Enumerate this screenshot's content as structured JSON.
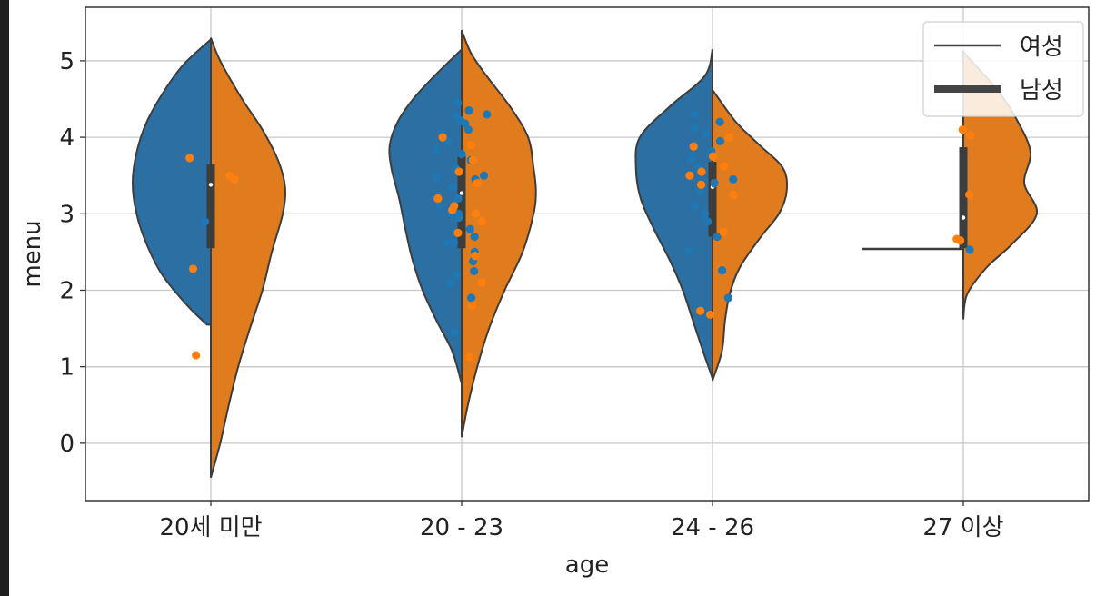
{
  "chart_data": {
    "type": "violin",
    "split": true,
    "xlabel": "age",
    "ylabel": "menu",
    "ylim": [
      -0.75,
      5.7
    ],
    "yticks": [
      "0",
      "1",
      "2",
      "3",
      "4",
      "5"
    ],
    "grid": true,
    "legend": {
      "placement": "top-right",
      "entries": [
        {
          "label": "여성",
          "style": "thin line"
        },
        {
          "label": "남성",
          "style": "thick line"
        }
      ]
    },
    "colors": {
      "여성": "#2c6fa3",
      "남성": "#e07c1e",
      "points_여성": "#1f77b4",
      "points_남성": "#ff7f0e",
      "edge": "#3d3d3d"
    },
    "categories": [
      "20세 미만",
      "20 - 23",
      "24 - 26",
      "27 이상"
    ],
    "series": [
      {
        "category": "20세 미만",
        "female": {
          "range": [
            1.55,
            5.28
          ],
          "density": [
            [
              1.55,
              0.05
            ],
            [
              1.8,
              0.3
            ],
            [
              2.2,
              0.62
            ],
            [
              2.6,
              0.82
            ],
            [
              3.0,
              0.95
            ],
            [
              3.4,
              1.0
            ],
            [
              3.8,
              0.95
            ],
            [
              4.2,
              0.82
            ],
            [
              4.6,
              0.6
            ],
            [
              4.95,
              0.35
            ],
            [
              5.28,
              0.0
            ]
          ],
          "points": [
            2.9
          ]
        },
        "male": {
          "range": [
            -0.45,
            5.3
          ],
          "density": [
            [
              -0.45,
              0.0
            ],
            [
              0.0,
              0.12
            ],
            [
              0.5,
              0.23
            ],
            [
              1.0,
              0.35
            ],
            [
              1.5,
              0.5
            ],
            [
              2.0,
              0.66
            ],
            [
              2.5,
              0.78
            ],
            [
              3.0,
              0.92
            ],
            [
              3.35,
              0.95
            ],
            [
              3.7,
              0.86
            ],
            [
              4.1,
              0.66
            ],
            [
              4.5,
              0.4
            ],
            [
              5.0,
              0.12
            ],
            [
              5.3,
              0.0
            ]
          ],
          "points": [
            3.73,
            3.5,
            3.45,
            2.28,
            1.15
          ]
        },
        "box": {
          "q1": 2.55,
          "q3": 3.65,
          "whisker_low": 1.13,
          "whisker_high": 3.97,
          "median": 3.38
        }
      },
      {
        "category": "20 - 23",
        "female": {
          "range": [
            0.78,
            5.15
          ],
          "density": [
            [
              0.78,
              0.0
            ],
            [
              1.2,
              0.12
            ],
            [
              1.6,
              0.32
            ],
            [
              2.0,
              0.5
            ],
            [
              2.4,
              0.63
            ],
            [
              2.8,
              0.72
            ],
            [
              3.2,
              0.8
            ],
            [
              3.6,
              0.9
            ],
            [
              3.9,
              0.92
            ],
            [
              4.2,
              0.82
            ],
            [
              4.5,
              0.62
            ],
            [
              4.8,
              0.35
            ],
            [
              5.15,
              0.0
            ]
          ],
          "points": [
            4.45,
            4.35,
            4.28,
            4.18,
            4.1,
            3.95,
            3.85,
            3.7,
            3.6,
            3.5,
            3.45,
            3.35,
            3.2,
            3.1,
            3.0,
            2.95,
            2.8,
            2.7,
            2.62,
            2.5,
            2.38,
            2.25,
            2.1,
            1.9,
            1.45,
            4.3,
            4.22,
            4.05,
            3.78,
            3.48,
            3.02,
            2.62,
            2.2
          ]
        },
        "male": {
          "range": [
            0.08,
            5.4
          ],
          "density": [
            [
              0.08,
              0.0
            ],
            [
              0.5,
              0.08
            ],
            [
              1.0,
              0.2
            ],
            [
              1.5,
              0.35
            ],
            [
              2.0,
              0.55
            ],
            [
              2.5,
              0.78
            ],
            [
              3.0,
              0.92
            ],
            [
              3.3,
              0.95
            ],
            [
              3.6,
              0.92
            ],
            [
              4.0,
              0.85
            ],
            [
              4.4,
              0.62
            ],
            [
              4.8,
              0.32
            ],
            [
              5.1,
              0.12
            ],
            [
              5.4,
              0.0
            ]
          ],
          "points": [
            4.0,
            3.9,
            3.7,
            3.55,
            3.4,
            3.2,
            3.1,
            3.05,
            3.0,
            2.9,
            2.75,
            2.45,
            2.1,
            1.13,
            1.8
          ]
        },
        "box": {
          "q1": 2.55,
          "q3": 3.8,
          "whisker_low": 1.45,
          "whisker_high": 4.45,
          "median": 3.27
        }
      },
      {
        "category": "24 - 26",
        "female": {
          "range": [
            0.85,
            5.15
          ],
          "density": [
            [
              0.85,
              0.0
            ],
            [
              1.2,
              0.12
            ],
            [
              1.6,
              0.25
            ],
            [
              2.0,
              0.38
            ],
            [
              2.4,
              0.55
            ],
            [
              2.8,
              0.75
            ],
            [
              3.2,
              0.92
            ],
            [
              3.6,
              0.98
            ],
            [
              4.0,
              0.93
            ],
            [
              4.4,
              0.55
            ],
            [
              4.8,
              0.1
            ],
            [
              5.15,
              0.0
            ]
          ],
          "points": [
            4.3,
            4.2,
            4.05,
            3.95,
            3.82,
            3.72,
            3.6,
            3.5,
            3.4,
            3.3,
            3.1,
            2.9,
            2.7,
            2.52,
            2.26,
            1.9,
            4.12,
            3.45,
            3.0
          ]
        },
        "male": {
          "range": [
            0.82,
            4.62
          ],
          "density": [
            [
              0.82,
              0.0
            ],
            [
              1.2,
              0.12
            ],
            [
              1.6,
              0.16
            ],
            [
              1.95,
              0.22
            ],
            [
              2.3,
              0.35
            ],
            [
              2.7,
              0.62
            ],
            [
              3.0,
              0.85
            ],
            [
              3.3,
              0.95
            ],
            [
              3.6,
              0.9
            ],
            [
              3.9,
              0.6
            ],
            [
              4.2,
              0.3
            ],
            [
              4.62,
              0.0
            ]
          ],
          "points": [
            4.0,
            3.88,
            3.75,
            3.62,
            3.55,
            3.5,
            3.38,
            3.25,
            2.76,
            1.68,
            1.73
          ]
        },
        "box": {
          "q1": 2.7,
          "q3": 3.68,
          "whisker_low": 1.75,
          "whisker_high": 4.5,
          "median": 3.35
        }
      },
      {
        "category": "27 이상",
        "female": {
          "range": [
            2.54,
            2.54
          ],
          "density": [],
          "points": [
            2.53
          ]
        },
        "male": {
          "range": [
            1.62,
            5.12
          ],
          "density": [
            [
              1.62,
              0.0
            ],
            [
              1.95,
              0.05
            ],
            [
              2.3,
              0.3
            ],
            [
              2.6,
              0.62
            ],
            [
              3.0,
              0.94
            ],
            [
              3.4,
              0.78
            ],
            [
              3.8,
              0.86
            ],
            [
              4.2,
              0.7
            ],
            [
              4.6,
              0.45
            ],
            [
              5.0,
              0.1
            ],
            [
              5.12,
              0.0
            ]
          ],
          "points": [
            4.1,
            4.03,
            3.25,
            2.67,
            2.65
          ]
        },
        "box": {
          "q1": 2.55,
          "q3": 3.87,
          "whisker_low": 2.53,
          "whisker_high": 4.1,
          "median": 2.95
        }
      }
    ]
  }
}
